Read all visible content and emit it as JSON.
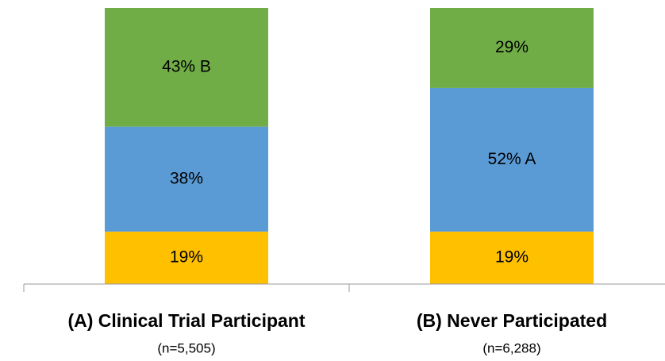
{
  "chart_data": {
    "type": "stacked_bar",
    "categories": [
      "(A) Clinical Trial Participant",
      "(B)  Never Participated"
    ],
    "category_notes": [
      "(n=5,505)",
      "(n=6,288)"
    ],
    "series": [
      {
        "color": "#FFC000",
        "values": [
          19,
          19
        ],
        "value_labels": [
          "19%",
          "19%"
        ]
      },
      {
        "color": "#5B9BD5",
        "values": [
          38,
          52
        ],
        "value_labels": [
          "38%",
          "52% A"
        ]
      },
      {
        "color": "#70AD47",
        "values": [
          43,
          29
        ],
        "value_labels": [
          "43% B",
          "29%"
        ]
      }
    ],
    "ylim": [
      0,
      100
    ]
  }
}
